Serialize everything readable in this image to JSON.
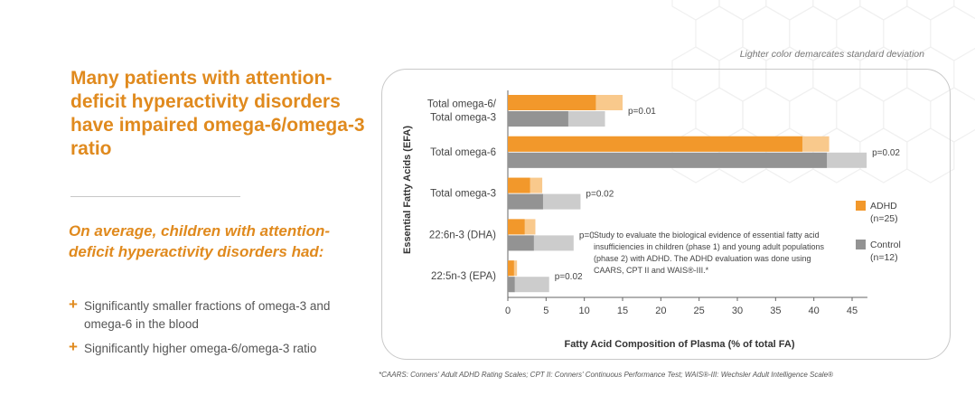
{
  "headline": "Many patients with attention-deficit hyperactivity disorders have impaired omega-6/omega-3 ratio",
  "subhead": "On average, children with attention-deficit hyperactivity disorders had:",
  "bullets": [
    "Significantly smaller fractions of omega-3 and omega-6 in the blood",
    "Significantly higher omega-6/omega-3 ratio"
  ],
  "bullet_marker": "+",
  "note": "Lighter color demarcates standard deviation",
  "study_text": "Study to evaluate the biological evidence of essential fatty acid insufficiencies in children (phase 1) and young adult populations (phase 2) with ADHD. The ADHD evaluation was done using CAARS, CPT II and WAIS®-III.*",
  "footnote": "*CAARS: Conners' Adult ADHD Rating Scales; CPT II: Conners' Continuous Performance Test; WAIS®-III: Wechsler Adult Intelligence Scale®",
  "colors": {
    "accent": "#e08a1e",
    "adhd": "#f2982b",
    "adhd_sd": "#f9c98c",
    "control": "#939393",
    "control_sd": "#cccccc"
  },
  "chart_data": {
    "type": "bar",
    "orientation": "horizontal",
    "categories": [
      [
        "Total omega-6/",
        "Total omega-3"
      ],
      [
        "Total omega-6"
      ],
      [
        "Total omega-3"
      ],
      [
        "22:6n-3 (DHA)"
      ],
      [
        "22:5n-3 (EPA)"
      ]
    ],
    "series": [
      {
        "name": "ADHD",
        "n_label": "(n=25)",
        "values": [
          11.5,
          38.5,
          2.9,
          2.2,
          0.8
        ],
        "sd": [
          3.5,
          3.5,
          1.6,
          1.4,
          0.4
        ]
      },
      {
        "name": "Control",
        "n_label": "(n=12)",
        "values": [
          7.9,
          41.7,
          4.6,
          3.4,
          0.9
        ],
        "sd": [
          4.8,
          5.2,
          4.9,
          5.2,
          4.5
        ]
      }
    ],
    "p_values": [
      "p=0.01",
      "p=0.02",
      "p=0.02",
      "p=0.00",
      "p=0.02"
    ],
    "xlabel": "Fatty Acid Composition of Plasma (% of total FA)",
    "ylabel": "Essential Fatty Acids (EFA)",
    "xlim": [
      0,
      47
    ],
    "xticks": [
      0,
      5,
      10,
      15,
      20,
      25,
      30,
      35,
      40,
      45
    ],
    "grid": false,
    "legend_position": "right"
  }
}
